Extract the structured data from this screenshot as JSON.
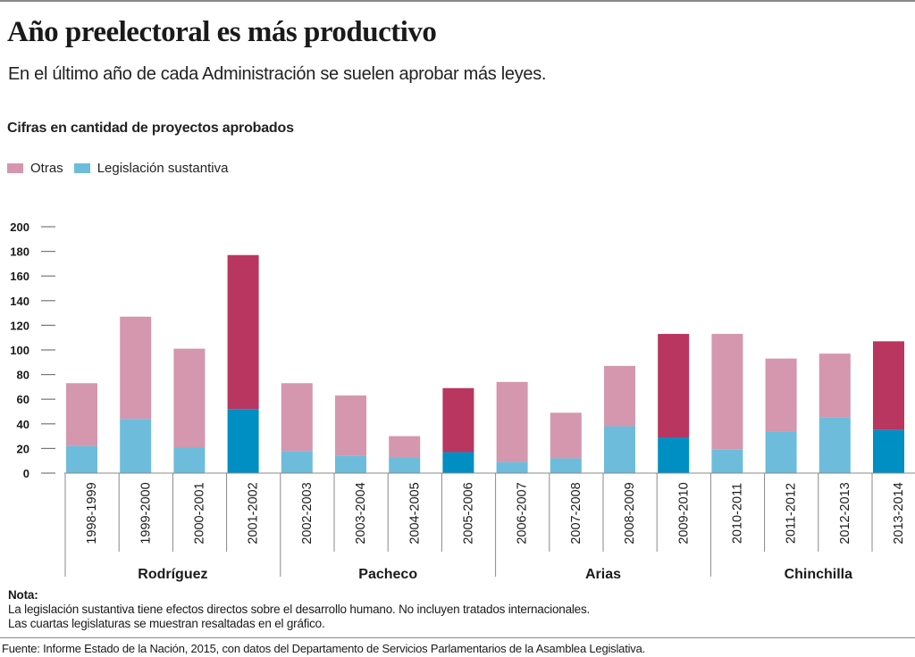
{
  "header": {
    "title": "Año preelectoral es más productivo",
    "subtitle": "En el último año de cada Administración se suelen aprobar más leyes.",
    "units": "Cifras en cantidad de proyectos aprobados"
  },
  "legend": [
    {
      "label": "Otras",
      "color": "#d497ad"
    },
    {
      "label": "Legislación sustantiva",
      "color": "#6dbcdb"
    }
  ],
  "colors": {
    "otras": "#d497ad",
    "sustantiva": "#6dbcdb",
    "otras_highlight": "#b8365f",
    "sustantiva_highlight": "#008fc2"
  },
  "chart_data": {
    "type": "bar",
    "stacked": true,
    "title": "Año preelectoral es más productivo",
    "subtitle": "En el último año de cada Administración se suelen aprobar más leyes.",
    "ylabel": "Cifras en cantidad de proyectos aprobados",
    "xlabel": "",
    "ylim": [
      0,
      200
    ],
    "yticks": [
      0,
      20,
      40,
      60,
      80,
      100,
      120,
      140,
      160,
      180,
      200
    ],
    "legend_position": "top-left",
    "grid": false,
    "categories": [
      "1998-1999",
      "1999-2000",
      "2000-2001",
      "2001-2002",
      "2002-2003",
      "2003-2004",
      "2004-2005",
      "2005-2006",
      "2006-2007",
      "2007-2008",
      "2008-2009",
      "2009-2010",
      "2010-2011",
      "2011-2012",
      "2012-2013",
      "2013-2014"
    ],
    "highlighted": [
      false,
      false,
      false,
      true,
      false,
      false,
      false,
      true,
      false,
      false,
      false,
      true,
      false,
      false,
      false,
      true
    ],
    "series": [
      {
        "name": "Legislación sustantiva",
        "values": [
          22,
          44,
          21,
          52,
          18,
          14,
          13,
          17,
          9,
          12,
          38,
          29,
          19,
          34,
          45,
          35
        ]
      },
      {
        "name": "Otras",
        "values": [
          51,
          83,
          80,
          125,
          55,
          49,
          17,
          52,
          65,
          37,
          49,
          84,
          94,
          59,
          52,
          72
        ]
      }
    ],
    "totals": [
      73,
      127,
      101,
      177,
      73,
      63,
      30,
      69,
      74,
      49,
      87,
      113,
      113,
      93,
      97,
      107
    ],
    "groups": [
      {
        "label": "Rodríguez",
        "span": 4
      },
      {
        "label": "Pacheco",
        "span": 4
      },
      {
        "label": "Arias",
        "span": 4
      },
      {
        "label": "Chinchilla",
        "span": 4
      }
    ]
  },
  "footer": {
    "nota_heading": "Nota:",
    "nota_line1": "La legislación sustantiva tiene efectos directos sobre el desarrollo humano. No incluyen tratados internacionales.",
    "nota_line2": "Las cuartas legislaturas se muestran resaltadas en el gráfico.",
    "source": "Fuente: Informe Estado de la Nación, 2015, con datos del Departamento de Servicios Parlamentarios de la Asamblea Legislativa."
  }
}
